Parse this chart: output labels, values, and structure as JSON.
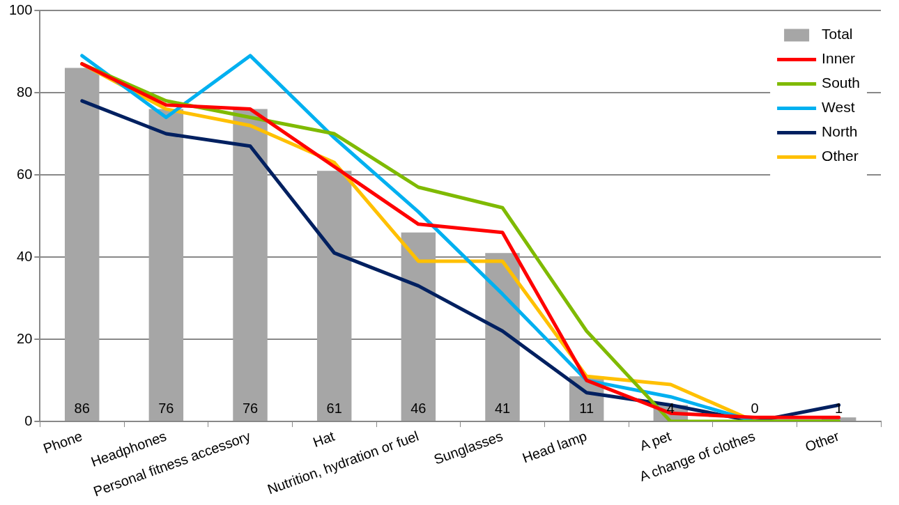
{
  "chart_data": {
    "type": "bar",
    "categories": [
      "Phone",
      "Headphones",
      "Personal fitness accessory",
      "Hat",
      "Nutrition, hydration or fuel",
      "Sunglasses",
      "Head lamp",
      "A pet",
      "A change of clothes",
      "Other"
    ],
    "series": [
      {
        "name": "Total",
        "color": "#a6a6a6",
        "values": [
          86,
          76,
          76,
          61,
          46,
          41,
          11,
          4,
          0,
          1
        ],
        "value_labels": [
          "86",
          "76",
          "76",
          "61",
          "46",
          "41",
          "11",
          "4",
          "0",
          "1"
        ]
      },
      {
        "name": "Inner",
        "type": "line",
        "color": "#ff0000",
        "values": [
          87,
          77,
          76,
          62,
          48,
          46,
          10,
          2,
          1,
          1
        ]
      },
      {
        "name": "South",
        "type": "line",
        "color": "#7fba00",
        "values": [
          87,
          78,
          74,
          70,
          57,
          52,
          22,
          0,
          0,
          0
        ]
      },
      {
        "name": "West",
        "type": "line",
        "color": "#00b0f0",
        "values": [
          89,
          74,
          89,
          69,
          51,
          31,
          10,
          6,
          0,
          0
        ]
      },
      {
        "name": "North",
        "type": "line",
        "color": "#002060",
        "values": [
          78,
          70,
          67,
          41,
          33,
          22,
          7,
          4,
          0,
          4
        ]
      },
      {
        "name": "Other",
        "type": "line",
        "color": "#ffc000",
        "values": [
          87,
          76,
          72,
          63,
          39,
          39,
          11,
          9,
          0,
          0
        ]
      }
    ],
    "ylim": [
      0,
      100
    ],
    "yticks": [
      0,
      20,
      40,
      60,
      80,
      100
    ],
    "grid": "y",
    "legend": "top right",
    "marker": "none",
    "line_style": "solid"
  }
}
